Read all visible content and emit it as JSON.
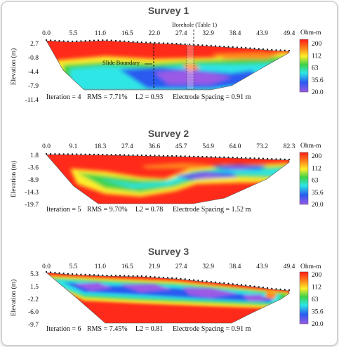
{
  "chart_data": [
    {
      "type": "heatmap",
      "title": "Survey 1",
      "xlabel": "",
      "ylabel": "Elevation (m)",
      "xticks": [
        "0.0",
        "5.5",
        "11.0",
        "16.5",
        "22.0",
        "27.4",
        "32.9",
        "38.4",
        "43.9",
        "49.4"
      ],
      "yticks": [
        "2.7",
        "-0.8",
        "-4.4",
        "-7.9",
        "-11.4"
      ],
      "xlim": [
        0,
        49.4
      ],
      "ylim": [
        -11.4,
        2.7
      ],
      "colorbar": {
        "unit": "Ohm-m",
        "ticks": [
          "200",
          "112",
          "63",
          "35.6",
          "20.0"
        ]
      },
      "stats": {
        "iteration": "Iteration = 4",
        "rms": "RMS = 7.71%",
        "l2": "L2 = 0.93",
        "spacing": "Electrode Spacing = 0.91 m"
      },
      "annotations": {
        "boundary": "Slide Boundary",
        "borehole": "Borehole (Table 1)"
      }
    },
    {
      "type": "heatmap",
      "title": "Survey 2",
      "xlabel": "",
      "ylabel": "Elevation (m)",
      "xticks": [
        "0.0",
        "9.1",
        "18.3",
        "27.4",
        "36.6",
        "45.7",
        "54.9",
        "64.0",
        "73.2",
        "82.3"
      ],
      "yticks": [
        "1.8",
        "-3.6",
        "-8.9",
        "-14.3",
        "-19.7"
      ],
      "xlim": [
        0,
        82.3
      ],
      "ylim": [
        -19.7,
        1.8
      ],
      "colorbar": {
        "unit": "Ohm-m",
        "ticks": [
          "200",
          "112",
          "63",
          "35.6",
          "20.0"
        ]
      },
      "stats": {
        "iteration": "Iteration = 5",
        "rms": "RMS = 9.70%",
        "l2": "L2 = 0.78",
        "spacing": "Electrode Spacing = 1.52 m"
      }
    },
    {
      "type": "heatmap",
      "title": "Survey 3",
      "xlabel": "",
      "ylabel": "Elevation (m)",
      "xticks": [
        "0.0",
        "5.5",
        "11.0",
        "16.5",
        "21.9",
        "27.4",
        "32.9",
        "38.4",
        "43.9",
        "49.4"
      ],
      "yticks": [
        "5.3",
        "1.5",
        "-2.2",
        "-6.0",
        "-9.7"
      ],
      "xlim": [
        0,
        49.4
      ],
      "ylim": [
        -9.7,
        5.3
      ],
      "colorbar": {
        "unit": "Ohm-m",
        "ticks": [
          "200",
          "112",
          "63",
          "35.6",
          "20.0"
        ]
      },
      "stats": {
        "iteration": "Iteration = 6",
        "rms": "RMS = 7.45%",
        "l2": "L2 = 0.81",
        "spacing": "Electrode Spacing = 0.91 m"
      }
    }
  ],
  "colors": {
    "red": "#ff2a1a",
    "orange": "#ff9a1e",
    "yellow": "#fff03a",
    "green": "#3fd25a",
    "cyan": "#2ee6e6",
    "blue": "#2a5af0",
    "purple": "#8a5ae6"
  }
}
